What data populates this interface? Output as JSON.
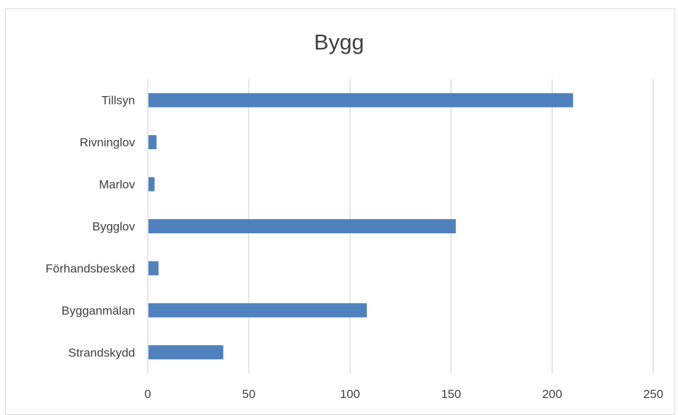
{
  "chart_data": {
    "type": "bar",
    "orientation": "horizontal",
    "title": "Bygg",
    "categories": [
      "Tillsyn",
      "Rivninglov",
      "Marlov",
      "Bygglov",
      "Förhandsbesked",
      "Bygganmälan",
      "Strandskydd"
    ],
    "values": [
      210,
      4,
      3,
      152,
      5,
      108,
      37
    ],
    "xlim": [
      0,
      250
    ],
    "xticks": [
      "0",
      "50",
      "100",
      "150",
      "200",
      "250"
    ],
    "grid": "vertical",
    "legend": "none",
    "bar_color": "#4f81bd",
    "grid_color": "#d9d9d9"
  }
}
